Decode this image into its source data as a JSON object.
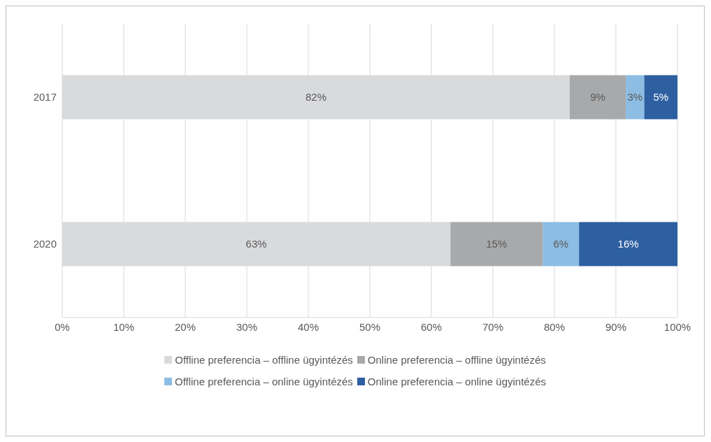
{
  "chart_data": {
    "type": "bar",
    "orientation": "horizontal",
    "stacked": true,
    "categories": [
      "2017",
      "2020"
    ],
    "series": [
      {
        "name": "Offline preferencia – offline ügyintézés",
        "color": "#d9dadc",
        "values": [
          82.5,
          63.1
        ],
        "value_labels": [
          "82%",
          "63%"
        ]
      },
      {
        "name": "Online preferencia – offline ügyintézés",
        "color": "#a8a9ab",
        "values": [
          9.1,
          15.0
        ],
        "value_labels": [
          "9%",
          "15%"
        ]
      },
      {
        "name": "Offline preferencia – online ügyintézés",
        "color": "#8dbde3",
        "values": [
          3.0,
          5.9
        ],
        "value_labels": [
          "3%",
          "6%"
        ]
      },
      {
        "name": "Online preferencia – online ügyintézés",
        "color": "#2e5fa1",
        "values": [
          5.4,
          16.0
        ],
        "value_labels": [
          "5%",
          "16%"
        ]
      }
    ],
    "xlim": [
      0,
      100
    ],
    "xticks": [
      {
        "value": 0,
        "label": "0%"
      },
      {
        "value": 10,
        "label": "10%"
      },
      {
        "value": 20,
        "label": "20%"
      },
      {
        "value": 30,
        "label": "30%"
      },
      {
        "value": 40,
        "label": "40%"
      },
      {
        "value": 50,
        "label": "50%"
      },
      {
        "value": 60,
        "label": "60%"
      },
      {
        "value": 70,
        "label": "70%"
      },
      {
        "value": 80,
        "label": "80%"
      },
      {
        "value": 90,
        "label": "90%"
      },
      {
        "value": 100,
        "label": "100%"
      }
    ],
    "grid": "x",
    "legend": "bottom"
  }
}
